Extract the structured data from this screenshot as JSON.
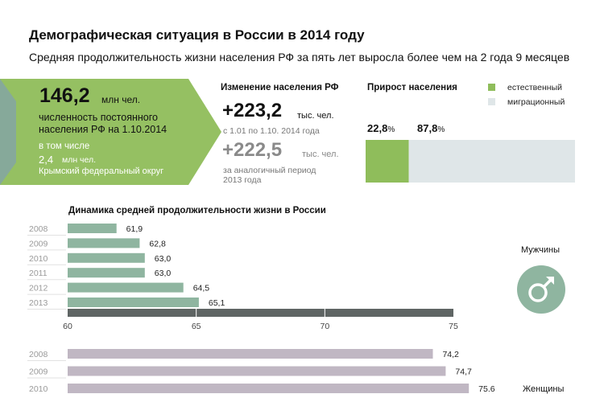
{
  "header": {
    "title": "Демографическая ситуация в России в 2014 году",
    "subtitle": "Средняя продолжительность жизни населения РФ за пять лет выросла более чем на 2 года 9 месяцев"
  },
  "population": {
    "value": "146,2",
    "unit": "млн чел.",
    "description": "численность постоянного населения РФ на 1.10.2014",
    "including": "в том числе",
    "crimea_value": "2,4",
    "crimea_unit": "млн чел.",
    "crimea_desc": "Крымский федеральный округ"
  },
  "change": {
    "title": "Изменение населения РФ",
    "value": "+223,2",
    "unit": "тыс. чел.",
    "period": "с 1.01 по 1.10. 2014 года",
    "prev_value": "+222,5",
    "prev_unit": "тыс. чел.",
    "prev_period": "за аналогичный период 2013 года"
  },
  "growth": {
    "title": "Прирост населения",
    "legend_natural": "естественный",
    "legend_migration": "миграционный",
    "natural_pct": 22.8,
    "migration_pct": 87.8,
    "natural_label": "22,8",
    "migration_label": "87,8",
    "pct_sign": "%",
    "color_natural": "#8fbd5b",
    "color_migration": "#dfe6e8"
  },
  "chart_data": {
    "type": "bar",
    "title": "Динамика средней продолжительности жизни в России",
    "xlim": [
      60,
      75
    ],
    "ticks": [
      "60",
      "65",
      "70",
      "75"
    ],
    "tick_values": [
      60,
      65,
      70,
      75
    ],
    "series": [
      {
        "name": "Мужчины",
        "categories": [
          "2008",
          "2009",
          "2010",
          "2011",
          "2012",
          "2013"
        ],
        "values": [
          61.9,
          62.8,
          63.0,
          63.0,
          64.5,
          65.1
        ],
        "labels": [
          "61,9",
          "62,8",
          "63,0",
          "63,0",
          "64,5",
          "65,1"
        ],
        "color": "#8fb5a0"
      },
      {
        "name": "Женщины",
        "categories": [
          "2008",
          "2009",
          "2010"
        ],
        "values": [
          74.2,
          74.7,
          75.6
        ],
        "labels": [
          "74,2",
          "74,7",
          "75.6"
        ],
        "color": "#c0b7c3"
      }
    ],
    "axis_color": "#5f6564",
    "male_icon": "male-symbol-icon"
  }
}
